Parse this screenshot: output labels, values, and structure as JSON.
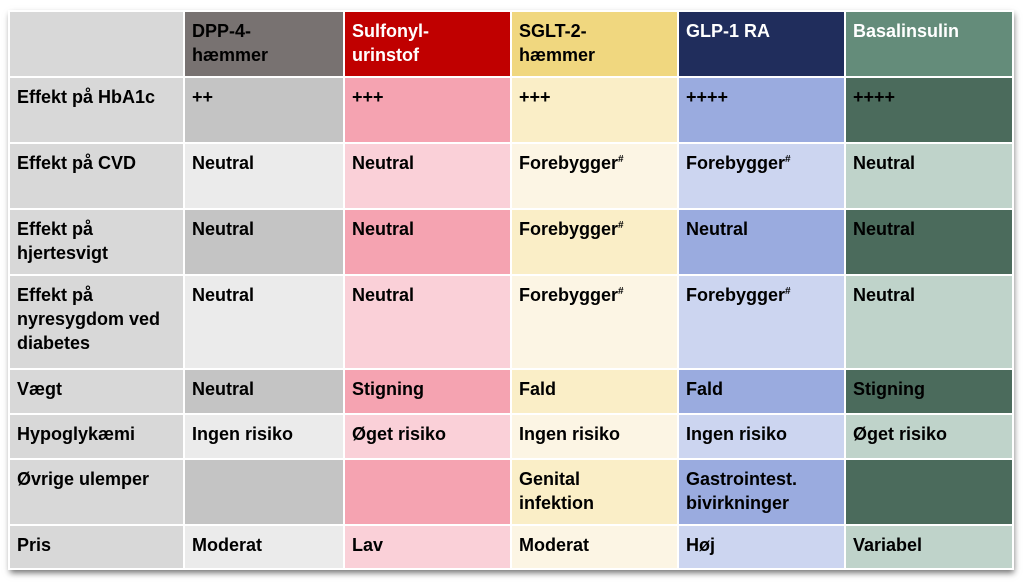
{
  "table": {
    "headers": [
      "",
      "DPP-4-\nhæmmer",
      "Sulfonyl-\nurinstof",
      "SGLT-2-\nhæmmer",
      "GLP-1 RA",
      "Basalinsulin"
    ],
    "rows": [
      {
        "label": "Effekt på HbA1c",
        "cells": [
          "++",
          "+++",
          "+++",
          "++++",
          "++++"
        ]
      },
      {
        "label": "Effekt på CVD",
        "cells": [
          "Neutral",
          "Neutral",
          "Forebygger",
          "Forebygger",
          "Neutral"
        ]
      },
      {
        "label": "Effekt på\nhjertesvigt",
        "cells": [
          "Neutral",
          "Neutral",
          "Forebygger",
          "Neutral",
          "Neutral"
        ]
      },
      {
        "label": "Effekt på\nnyresygdom ved\ndiabetes",
        "cells": [
          "Neutral",
          "Neutral",
          "Forebygger",
          "Forebygger",
          "Neutral"
        ]
      },
      {
        "label": "Vægt",
        "cells": [
          "Neutral",
          "Stigning",
          "Fald",
          "Fald",
          "Stigning"
        ]
      },
      {
        "label": "Hypoglykæmi",
        "cells": [
          "Ingen risiko",
          "Øget risiko",
          "Ingen risiko",
          "Ingen risiko",
          "Øget risiko"
        ]
      },
      {
        "label": "Øvrige ulemper",
        "cells": [
          "",
          "",
          "Genital\ninfektion",
          "Gastrointest.\nbivirkninger",
          ""
        ]
      },
      {
        "label": "Pris",
        "cells": [
          "Moderat",
          "Lav",
          "Moderat",
          "Høj",
          "Variabel"
        ]
      }
    ],
    "footnote_mark": "#"
  },
  "colors": {
    "dpp_header": "#787271",
    "su_header": "#c00000",
    "sglt_header": "#f0d77f",
    "glp_header": "#202d5c",
    "insulin_header": "#648c7a"
  }
}
